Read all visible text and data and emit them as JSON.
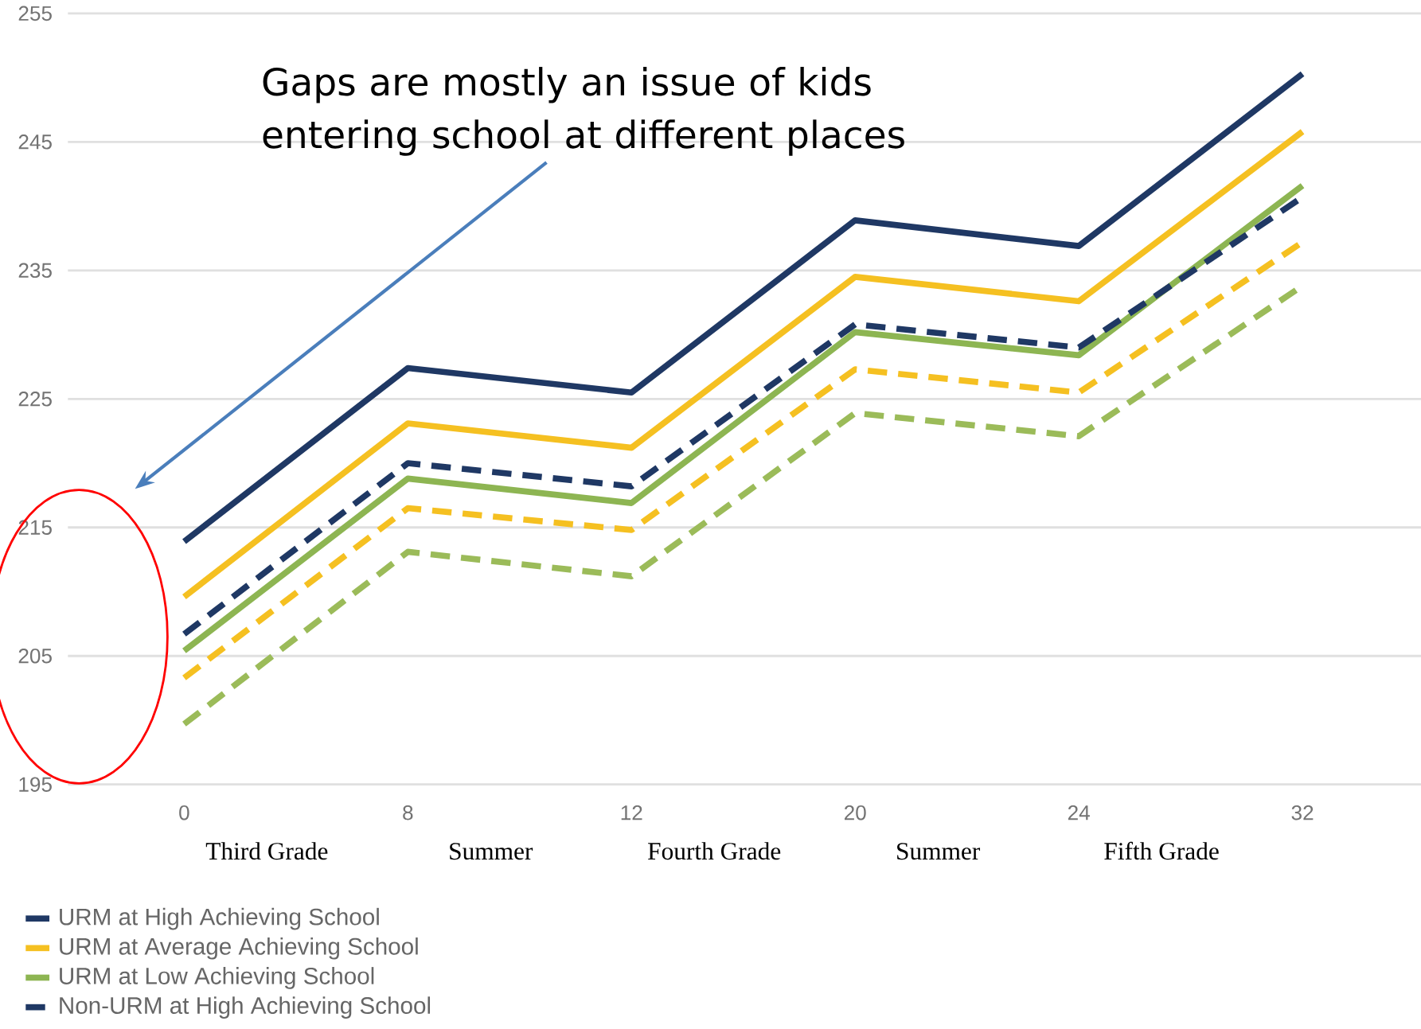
{
  "chart_data": {
    "type": "line",
    "categories": [
      "0",
      "8",
      "12",
      "20",
      "24",
      "32"
    ],
    "ylim": [
      195,
      255
    ],
    "yticks": [
      195,
      205,
      215,
      225,
      235,
      245,
      255
    ],
    "grid": "y",
    "legend": "bottom left",
    "annotations": [
      "Gaps are mostly an issue of kids entering school at different places",
      "Third Grade",
      "Summer",
      "Fourth Grade",
      "Summer",
      "Fifth Grade"
    ],
    "series": [
      {
        "name": "URM at High Achieving School",
        "color": "#1f3864",
        "line_style": "solid",
        "values": [
          213.9,
          227.4,
          225.5,
          238.9,
          236.9,
          250.3
        ]
      },
      {
        "name": "URM at Average Achieving School",
        "color": "#f5c021",
        "line_style": "solid",
        "values": [
          209.6,
          223.1,
          221.2,
          234.5,
          232.6,
          245.8
        ]
      },
      {
        "name": "URM at Low Achieving School",
        "color": "#8db552",
        "line_style": "solid",
        "values": [
          205.4,
          218.8,
          216.9,
          230.2,
          228.4,
          241.6
        ]
      },
      {
        "name": "Non-URM at High Achieving School",
        "color": "#1f3864",
        "line_style": "dashed",
        "values": [
          206.7,
          220.0,
          218.2,
          230.8,
          229.0,
          240.7
        ]
      },
      {
        "color": "#f5c021",
        "line_style": "dashed",
        "values": [
          203.3,
          216.5,
          214.8,
          227.3,
          225.5,
          237.2
        ]
      },
      {
        "color": "#9bbb59",
        "line_style": "dashed",
        "values": [
          199.7,
          213.1,
          211.2,
          223.9,
          222.1,
          233.8
        ]
      }
    ]
  }
}
